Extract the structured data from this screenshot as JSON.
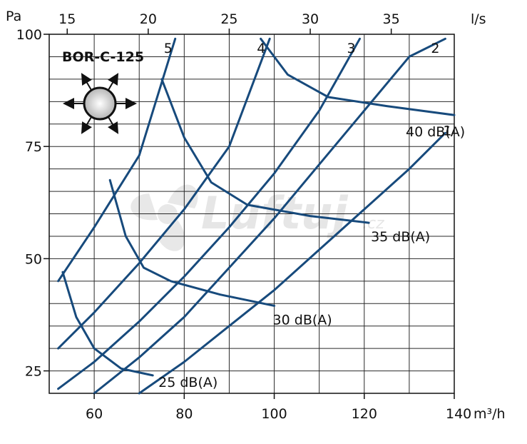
{
  "chart_data": {
    "type": "line",
    "title": "BOR-C-125",
    "x_unit": "m³/h",
    "x2_unit": "l/s",
    "y_unit": "Pa",
    "xlim": [
      50,
      140
    ],
    "ylim": [
      20,
      100
    ],
    "x_ticks": [
      "60",
      "80",
      "100",
      "120",
      "140"
    ],
    "x_tick_values": [
      60,
      80,
      100,
      120,
      140
    ],
    "x2_ticks": [
      "15",
      "20",
      "25",
      "30",
      "35"
    ],
    "x2_tick_values": [
      15,
      20,
      25,
      30,
      35
    ],
    "y_ticks": [
      "25",
      "50",
      "75",
      "100"
    ],
    "y_tick_values": [
      25,
      50,
      75,
      100
    ],
    "grid": true,
    "color": "#174a7c",
    "speed_curves": [
      {
        "label": "1",
        "points": [
          [
            70,
            20
          ],
          [
            80,
            27
          ],
          [
            90,
            35
          ],
          [
            100,
            43
          ],
          [
            110,
            52
          ],
          [
            120,
            61
          ],
          [
            130,
            70
          ],
          [
            138,
            78
          ]
        ]
      },
      {
        "label": "2",
        "points": [
          [
            60,
            20
          ],
          [
            70,
            28
          ],
          [
            80,
            37
          ],
          [
            90,
            48
          ],
          [
            100,
            59
          ],
          [
            110,
            71
          ],
          [
            120,
            83
          ],
          [
            130,
            95
          ],
          [
            138,
            99
          ]
        ]
      },
      {
        "label": "3",
        "points": [
          [
            52,
            21
          ],
          [
            60,
            27
          ],
          [
            70,
            36
          ],
          [
            80,
            46
          ],
          [
            90,
            57
          ],
          [
            100,
            69
          ],
          [
            110,
            83
          ],
          [
            119,
            99
          ]
        ]
      },
      {
        "label": "4",
        "points": [
          [
            52,
            30
          ],
          [
            60,
            38
          ],
          [
            70,
            49
          ],
          [
            80,
            61
          ],
          [
            90,
            75
          ],
          [
            99,
            99
          ]
        ]
      },
      {
        "label": "5",
        "points": [
          [
            52,
            45
          ],
          [
            60,
            57
          ],
          [
            70,
            73
          ],
          [
            78,
            99
          ]
        ]
      }
    ],
    "noise_curves": [
      {
        "label": "25 dB(A)",
        "points": [
          [
            53,
            47
          ],
          [
            56,
            37
          ],
          [
            60,
            30
          ],
          [
            66,
            25.5
          ],
          [
            73,
            24
          ]
        ]
      },
      {
        "label": "30 dB(A)",
        "points": [
          [
            63.5,
            67.5
          ],
          [
            67,
            55
          ],
          [
            71,
            48
          ],
          [
            77,
            45
          ],
          [
            88,
            42
          ],
          [
            100,
            39.5
          ]
        ]
      },
      {
        "label": "35 dB(A)",
        "points": [
          [
            75,
            90
          ],
          [
            80,
            77
          ],
          [
            86,
            67
          ],
          [
            94,
            62
          ],
          [
            108,
            59.5
          ],
          [
            121,
            58
          ]
        ]
      },
      {
        "label": "40 dB(A)",
        "points": [
          [
            97,
            99
          ],
          [
            103,
            91
          ],
          [
            112,
            86
          ],
          [
            125,
            84
          ],
          [
            140,
            82
          ]
        ]
      }
    ]
  },
  "watermark": {
    "brand": "Luftuj",
    "suffix": ".cz"
  }
}
